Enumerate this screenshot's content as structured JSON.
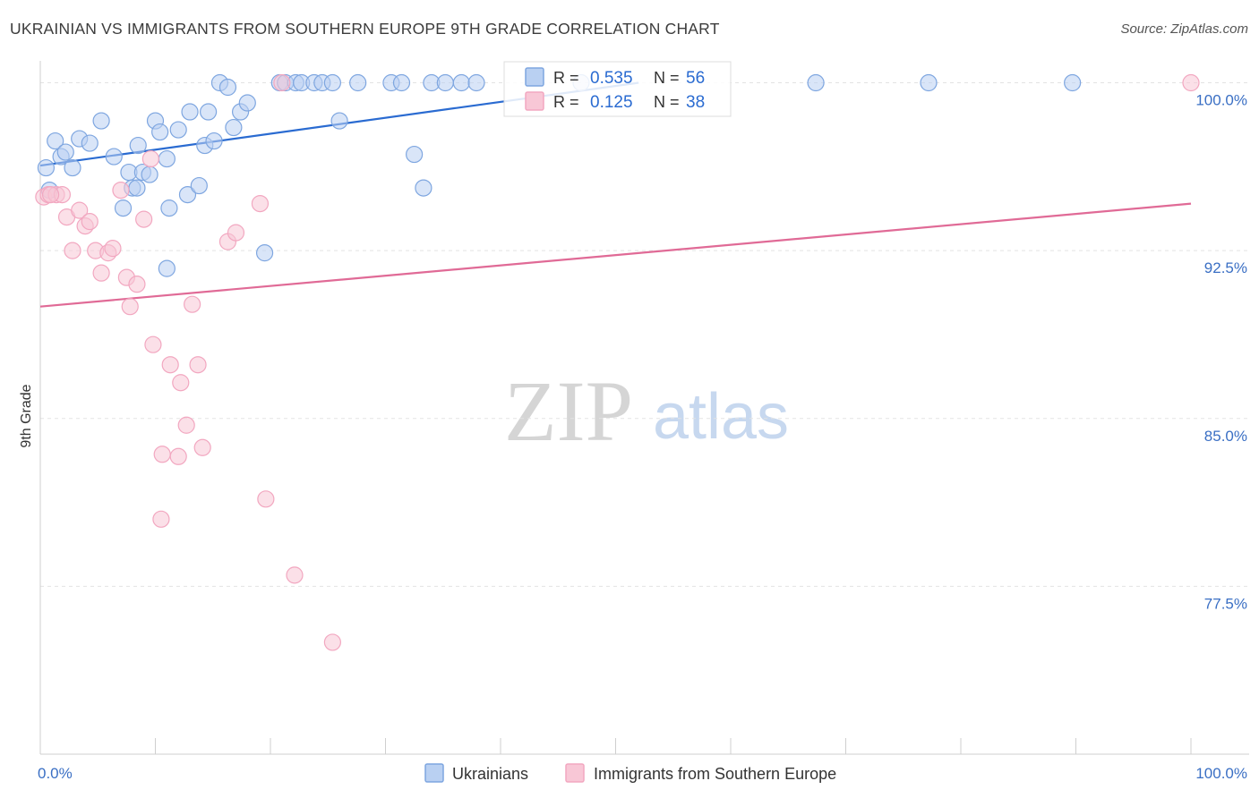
{
  "title": "UKRAINIAN VS IMMIGRANTS FROM SOUTHERN EUROPE 9TH GRADE CORRELATION CHART",
  "source": "Source: ZipAtlas.com",
  "watermark": {
    "zip": "ZIP",
    "atlas": "atlas"
  },
  "chart_data": {
    "type": "scatter",
    "title": "UKRAINIAN VS IMMIGRANTS FROM SOUTHERN EUROPE 9TH GRADE CORRELATION CHART",
    "xlabel": "",
    "ylabel": "9th Grade",
    "xlim": [
      0,
      100
    ],
    "ylim": [
      70.0,
      100.7
    ],
    "x_tick_labels": [
      "0.0%",
      "100.0%"
    ],
    "y_ticks": [
      {
        "value": 100.0,
        "label": "100.0%"
      },
      {
        "value": 92.5,
        "label": "92.5%"
      },
      {
        "value": 85.0,
        "label": "85.0%"
      },
      {
        "value": 77.5,
        "label": "77.5%"
      }
    ],
    "grid": true,
    "legend": [
      {
        "series": "Ukrainians",
        "r_label": "R =",
        "r_value": "0.535",
        "n_label": "N =",
        "n_value": "56"
      },
      {
        "series": "Immigrants from Southern Europe",
        "r_label": "R =",
        "r_value": "0.125",
        "n_label": "N =",
        "n_value": "38"
      }
    ],
    "series": [
      {
        "name": "Ukrainians",
        "color": "#7ea6e0",
        "line_color": "#2a6bd1",
        "trend": {
          "x": [
            0,
            52
          ],
          "y": [
            96.3,
            100.0
          ]
        },
        "points": [
          [
            0.5,
            96.2
          ],
          [
            0.8,
            95.2
          ],
          [
            1.3,
            97.4
          ],
          [
            1.8,
            96.7
          ],
          [
            2.2,
            96.9
          ],
          [
            2.8,
            96.2
          ],
          [
            3.4,
            97.5
          ],
          [
            4.3,
            97.3
          ],
          [
            5.3,
            98.3
          ],
          [
            6.4,
            96.7
          ],
          [
            7.2,
            94.4
          ],
          [
            7.7,
            96.0
          ],
          [
            8.0,
            95.3
          ],
          [
            8.4,
            95.3
          ],
          [
            8.5,
            97.2
          ],
          [
            8.9,
            96.0
          ],
          [
            9.5,
            95.9
          ],
          [
            10.0,
            98.3
          ],
          [
            10.4,
            97.8
          ],
          [
            11.0,
            96.6
          ],
          [
            11.2,
            94.4
          ],
          [
            12.0,
            97.9
          ],
          [
            12.8,
            95.0
          ],
          [
            13.0,
            98.7
          ],
          [
            13.8,
            95.4
          ],
          [
            14.3,
            97.2
          ],
          [
            14.6,
            98.7
          ],
          [
            15.1,
            97.4
          ],
          [
            15.6,
            100.0
          ],
          [
            16.3,
            99.8
          ],
          [
            16.8,
            98.0
          ],
          [
            17.4,
            98.7
          ],
          [
            18.0,
            99.1
          ],
          [
            19.5,
            92.4
          ],
          [
            20.8,
            100.0
          ],
          [
            21.3,
            100.0
          ],
          [
            22.2,
            100.0
          ],
          [
            22.7,
            100.0
          ],
          [
            23.8,
            100.0
          ],
          [
            24.5,
            100.0
          ],
          [
            25.4,
            100.0
          ],
          [
            26.0,
            98.3
          ],
          [
            27.6,
            100.0
          ],
          [
            30.5,
            100.0
          ],
          [
            31.4,
            100.0
          ],
          [
            32.5,
            96.8
          ],
          [
            33.3,
            95.3
          ],
          [
            34.0,
            100.0
          ],
          [
            35.2,
            100.0
          ],
          [
            36.6,
            100.0
          ],
          [
            37.9,
            100.0
          ],
          [
            47.0,
            100.0
          ],
          [
            67.4,
            100.0
          ],
          [
            77.2,
            100.0
          ],
          [
            89.7,
            100.0
          ],
          [
            11.0,
            91.7
          ]
        ]
      },
      {
        "name": "Immigrants from Southern Europe",
        "color": "#f2a7c0",
        "line_color": "#e06a96",
        "trend": {
          "x": [
            0,
            100
          ],
          "y": [
            90.0,
            94.6
          ]
        },
        "points": [
          [
            0.3,
            94.9
          ],
          [
            0.7,
            95.0
          ],
          [
            1.4,
            95.0
          ],
          [
            1.9,
            95.0
          ],
          [
            2.3,
            94.0
          ],
          [
            2.8,
            92.5
          ],
          [
            3.4,
            94.3
          ],
          [
            3.9,
            93.6
          ],
          [
            4.3,
            93.8
          ],
          [
            4.8,
            92.5
          ],
          [
            5.3,
            91.5
          ],
          [
            5.9,
            92.4
          ],
          [
            6.3,
            92.6
          ],
          [
            7.0,
            95.2
          ],
          [
            7.5,
            91.3
          ],
          [
            7.8,
            90.0
          ],
          [
            8.4,
            91.0
          ],
          [
            9.0,
            93.9
          ],
          [
            9.6,
            96.6
          ],
          [
            9.8,
            88.3
          ],
          [
            10.6,
            83.4
          ],
          [
            10.5,
            80.5
          ],
          [
            11.3,
            87.4
          ],
          [
            12.0,
            83.3
          ],
          [
            12.2,
            86.6
          ],
          [
            12.7,
            84.7
          ],
          [
            13.2,
            90.1
          ],
          [
            13.7,
            87.4
          ],
          [
            14.1,
            83.7
          ],
          [
            16.3,
            92.9
          ],
          [
            17.0,
            93.3
          ],
          [
            19.1,
            94.6
          ],
          [
            19.6,
            81.4
          ],
          [
            21.0,
            100.0
          ],
          [
            22.1,
            78.0
          ],
          [
            25.4,
            75.0
          ],
          [
            100.0,
            100.0
          ],
          [
            0.9,
            95.0
          ]
        ]
      }
    ]
  }
}
